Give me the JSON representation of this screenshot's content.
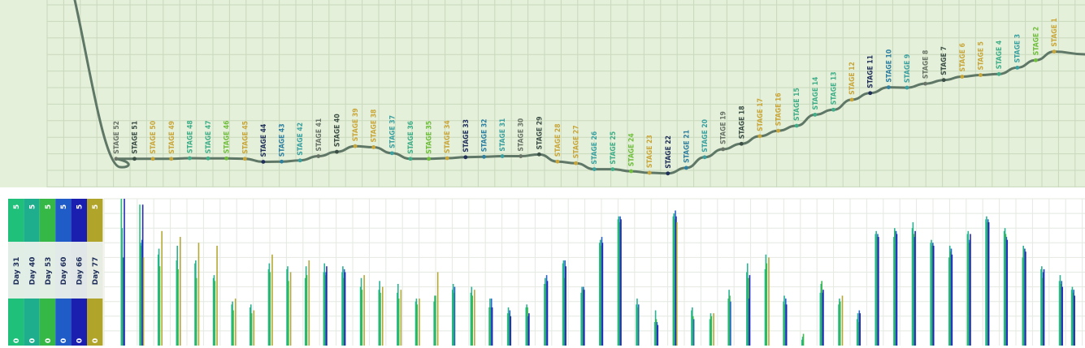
{
  "chart_data": [
    {
      "type": "line",
      "stages": [
        {
          "label": "STAGE 52",
          "x": 52,
          "y": 9,
          "color": "#6b7468"
        },
        {
          "label": "STAGE 51",
          "x": 51,
          "y": 9,
          "color": "#3c4f46"
        },
        {
          "label": "STAGE 50",
          "x": 50,
          "y": 9,
          "color": "#c9a63a"
        },
        {
          "label": "STAGE 49",
          "x": 49,
          "y": 9,
          "color": "#c9a63a"
        },
        {
          "label": "STAGE 48",
          "x": 48,
          "y": 9.3,
          "color": "#3fae88"
        },
        {
          "label": "STAGE 47",
          "x": 47,
          "y": 9.2,
          "color": "#3fae88"
        },
        {
          "label": "STAGE 46",
          "x": 46,
          "y": 9.2,
          "color": "#6fbe3c"
        },
        {
          "label": "STAGE 45",
          "x": 45,
          "y": 9,
          "color": "#c9a63a"
        },
        {
          "label": "STAGE 44",
          "x": 44,
          "y": 7.5,
          "color": "#1f2f5a"
        },
        {
          "label": "STAGE 43",
          "x": 43,
          "y": 7.6,
          "color": "#2e7fa0"
        },
        {
          "label": "STAGE 42",
          "x": 42,
          "y": 8.2,
          "color": "#3aa0a0"
        },
        {
          "label": "STAGE 41",
          "x": 41,
          "y": 10.3,
          "color": "#6b7468"
        },
        {
          "label": "STAGE 40",
          "x": 40,
          "y": 12.5,
          "color": "#3c4f46"
        },
        {
          "label": "STAGE 39",
          "x": 39,
          "y": 15.3,
          "color": "#c9a63a"
        },
        {
          "label": "STAGE 38",
          "x": 38,
          "y": 14.8,
          "color": "#c9a63a"
        },
        {
          "label": "STAGE 37",
          "x": 37,
          "y": 11.8,
          "color": "#3aa0a0"
        },
        {
          "label": "STAGE 36",
          "x": 36,
          "y": 9,
          "color": "#3fae88"
        },
        {
          "label": "STAGE 35",
          "x": 35,
          "y": 9,
          "color": "#6fbe3c"
        },
        {
          "label": "STAGE 34",
          "x": 34,
          "y": 9.3,
          "color": "#c9a63a"
        },
        {
          "label": "STAGE 33",
          "x": 33,
          "y": 9.8,
          "color": "#1f2f5a"
        },
        {
          "label": "STAGE 32",
          "x": 32,
          "y": 10,
          "color": "#2e7fa0"
        },
        {
          "label": "STAGE 31",
          "x": 31,
          "y": 10.3,
          "color": "#3aa0a0"
        },
        {
          "label": "STAGE 30",
          "x": 30,
          "y": 10.3,
          "color": "#6b7468"
        },
        {
          "label": "STAGE 29",
          "x": 29,
          "y": 11.2,
          "color": "#3c4f46"
        },
        {
          "label": "STAGE 28",
          "x": 28,
          "y": 7.6,
          "color": "#c9a63a"
        },
        {
          "label": "STAGE 27",
          "x": 27,
          "y": 6.8,
          "color": "#c9a63a"
        },
        {
          "label": "STAGE 26",
          "x": 26,
          "y": 3.8,
          "color": "#3aa0a0"
        },
        {
          "label": "STAGE 25",
          "x": 25,
          "y": 3.8,
          "color": "#3fae88"
        },
        {
          "label": "STAGE 24",
          "x": 24,
          "y": 2.8,
          "color": "#6fbe3c"
        },
        {
          "label": "STAGE 23",
          "x": 23,
          "y": 2,
          "color": "#c9a63a"
        },
        {
          "label": "STAGE 22",
          "x": 22,
          "y": 1.7,
          "color": "#1f2f5a"
        },
        {
          "label": "STAGE 21",
          "x": 21,
          "y": 4.5,
          "color": "#2e7fa0"
        },
        {
          "label": "STAGE 20",
          "x": 20,
          "y": 9.8,
          "color": "#3aa0a0"
        },
        {
          "label": "STAGE 19",
          "x": 19,
          "y": 13.8,
          "color": "#6b7468"
        },
        {
          "label": "STAGE 18",
          "x": 18,
          "y": 16.5,
          "color": "#3c4f46"
        },
        {
          "label": "STAGE 17",
          "x": 17,
          "y": 20.3,
          "color": "#c9a63a"
        },
        {
          "label": "STAGE 16",
          "x": 16,
          "y": 23,
          "color": "#c9a63a"
        },
        {
          "label": "STAGE 15",
          "x": 15,
          "y": 25.5,
          "color": "#3fae88"
        },
        {
          "label": "STAGE 14",
          "x": 14,
          "y": 31,
          "color": "#3fae88"
        },
        {
          "label": "STAGE 13",
          "x": 13,
          "y": 33.5,
          "color": "#3fae88"
        },
        {
          "label": "STAGE 12",
          "x": 12,
          "y": 38.5,
          "color": "#c9a63a"
        },
        {
          "label": "STAGE 11",
          "x": 11,
          "y": 41.8,
          "color": "#1f2f5a"
        },
        {
          "label": "STAGE 10",
          "x": 10,
          "y": 44.7,
          "color": "#2e7fa0"
        },
        {
          "label": "STAGE 9",
          "x": 9,
          "y": 44.5,
          "color": "#3aa0a0"
        },
        {
          "label": "STAGE 8",
          "x": 8,
          "y": 46.5,
          "color": "#6b7468"
        },
        {
          "label": "STAGE 7",
          "x": 7,
          "y": 48.3,
          "color": "#3c4f46"
        },
        {
          "label": "STAGE 6",
          "x": 6,
          "y": 50,
          "color": "#c9a63a"
        },
        {
          "label": "STAGE 5",
          "x": 5,
          "y": 50.8,
          "color": "#c9a63a"
        },
        {
          "label": "STAGE 4",
          "x": 4,
          "y": 51.3,
          "color": "#3fae88"
        },
        {
          "label": "STAGE 3",
          "x": 3,
          "y": 54.5,
          "color": "#3aa0a0"
        },
        {
          "label": "STAGE 2",
          "x": 2,
          "y": 58.2,
          "color": "#6fbe3c"
        },
        {
          "label": "STAGE 1",
          "x": 1,
          "y": 62.5,
          "color": "#c9a63a"
        }
      ],
      "background": "#e4f0d9",
      "line_color": "#5f7766",
      "grid": true
    },
    {
      "type": "bar",
      "legend": [
        {
          "name": "Day 31",
          "max": "5",
          "min": "0",
          "color": "#1ec07a"
        },
        {
          "name": "Day 40",
          "max": "5",
          "min": "0",
          "color": "#1fae8d"
        },
        {
          "name": "Day 53",
          "max": "5",
          "min": "0",
          "color": "#35b846"
        },
        {
          "name": "Day 60",
          "max": "5",
          "min": "0",
          "color": "#1f5cc8"
        },
        {
          "name": "Day 66",
          "max": "5",
          "min": "0",
          "color": "#1a1fb0"
        },
        {
          "name": "Day 77",
          "max": "5",
          "min": "0",
          "color": "#b1a42a"
        }
      ],
      "ylim": [
        0,
        5
      ],
      "grid": true,
      "bars": [
        {
          "x": 52,
          "values": [
            5,
            4,
            3,
            3,
            5,
            0
          ]
        },
        {
          "x": 51,
          "values": [
            4.8,
            3.5,
            3.4,
            3.6,
            4.8,
            3
          ]
        },
        {
          "x": 50,
          "values": [
            3.1,
            3.3,
            2.7,
            0,
            0,
            3.9
          ]
        },
        {
          "x": 49,
          "values": [
            2.9,
            3.4,
            2.6,
            0,
            0,
            3.7
          ]
        },
        {
          "x": 48,
          "values": [
            2.8,
            2.9,
            2.3,
            0,
            0,
            3.5
          ]
        },
        {
          "x": 47,
          "values": [
            2.3,
            2.4,
            2.2,
            0,
            0,
            3.4
          ]
        },
        {
          "x": 46,
          "values": [
            1.4,
            1.5,
            1.2,
            0,
            0,
            1.6
          ]
        },
        {
          "x": 45,
          "values": [
            1.3,
            1.4,
            1.1,
            0,
            0,
            1.2
          ]
        },
        {
          "x": 44,
          "values": [
            2.6,
            2.8,
            2.5,
            0,
            0,
            3.1
          ]
        },
        {
          "x": 43,
          "values": [
            2.6,
            2.7,
            2.2,
            0,
            0,
            2.5
          ]
        },
        {
          "x": 42,
          "values": [
            2.3,
            2.7,
            2.4,
            0,
            0,
            2.9
          ]
        },
        {
          "x": 41,
          "values": [
            2.5,
            2.8,
            2.4,
            2.5,
            2.7,
            0
          ]
        },
        {
          "x": 40,
          "values": [
            2.5,
            2.7,
            2.3,
            2.6,
            2.5,
            0
          ]
        },
        {
          "x": 39,
          "values": [
            2,
            2.3,
            1.9,
            0,
            0,
            2.4
          ]
        },
        {
          "x": 38,
          "values": [
            1.9,
            2.2,
            1.8,
            0,
            0,
            2
          ]
        },
        {
          "x": 37,
          "values": [
            1.8,
            2.1,
            1.6,
            0,
            0,
            1.9
          ]
        },
        {
          "x": 36,
          "values": [
            1.5,
            1.6,
            1.4,
            0,
            0,
            1.6
          ]
        },
        {
          "x": 35,
          "values": [
            1.5,
            1.7,
            1.7,
            0,
            0,
            2.5
          ]
        },
        {
          "x": 34,
          "values": [
            1.9,
            2.1,
            1.8,
            2,
            0,
            0
          ]
        },
        {
          "x": 33,
          "values": [
            1.8,
            2,
            1.7,
            0,
            0,
            1.9
          ]
        },
        {
          "x": 32,
          "values": [
            1.3,
            1.6,
            1.3,
            1.6,
            1.3,
            0
          ]
        },
        {
          "x": 31,
          "values": [
            1.1,
            1.3,
            1.1,
            1.2,
            1,
            0
          ]
        },
        {
          "x": 30,
          "values": [
            1.3,
            1.4,
            1.3,
            1,
            1.1,
            0
          ]
        },
        {
          "x": 29,
          "values": [
            2.1,
            2.3,
            2.1,
            2.4,
            2.2,
            0
          ]
        },
        {
          "x": 28,
          "values": [
            2.8,
            2.9,
            2.3,
            2.9,
            2.7,
            0
          ]
        },
        {
          "x": 27,
          "values": [
            1.8,
            2,
            1.9,
            2,
            1.9,
            0
          ]
        },
        {
          "x": 26,
          "values": [
            3.5,
            3.6,
            3.4,
            3.7,
            3.5,
            0
          ]
        },
        {
          "x": 25,
          "values": [
            4.3,
            4.4,
            4.2,
            4.4,
            4.3,
            0
          ]
        },
        {
          "x": 24,
          "values": [
            1.4,
            1.6,
            1.3,
            1.4,
            0,
            0
          ]
        },
        {
          "x": 23,
          "values": [
            0.8,
            1.2,
            0.9,
            0.8,
            0.7,
            0
          ]
        },
        {
          "x": 22,
          "values": [
            4.4,
            4.5,
            4.3,
            4.6,
            4.4,
            4.2
          ]
        },
        {
          "x": 21,
          "values": [
            1.2,
            1.3,
            1,
            0.9,
            0,
            0
          ]
        },
        {
          "x": 20,
          "values": [
            0.9,
            1.1,
            1,
            0,
            0,
            1.1
          ]
        },
        {
          "x": 19,
          "values": [
            1.6,
            1.9,
            1.7,
            1.5,
            0,
            0
          ]
        },
        {
          "x": 18,
          "values": [
            2.5,
            2.8,
            2.3,
            1.6,
            2.4,
            0
          ]
        },
        {
          "x": 17,
          "values": [
            2.6,
            3.1,
            2.8,
            0,
            0,
            3
          ]
        },
        {
          "x": 16,
          "values": [
            1.5,
            1.7,
            1.4,
            1.6,
            1.4,
            0
          ]
        },
        {
          "x": 15,
          "values": [
            0.2,
            0.3,
            0.4,
            0,
            0,
            0
          ]
        },
        {
          "x": 14,
          "values": [
            1.8,
            2.1,
            2.2,
            1.8,
            1.9,
            0
          ]
        },
        {
          "x": 13,
          "values": [
            1.4,
            1.6,
            1.5,
            0,
            0,
            1.7
          ]
        },
        {
          "x": 12,
          "values": [
            0.9,
            1.1,
            0.8,
            1.2,
            1.1,
            0
          ]
        },
        {
          "x": 11,
          "values": [
            3.8,
            3.9,
            3.7,
            3.8,
            3.7,
            0
          ]
        },
        {
          "x": 10,
          "values": [
            3.7,
            4,
            3.9,
            3.9,
            3.8,
            0
          ]
        },
        {
          "x": 9,
          "values": [
            4,
            4.2,
            3.8,
            3.7,
            3.9,
            0
          ]
        },
        {
          "x": 8,
          "values": [
            3.5,
            3.6,
            3.4,
            3.5,
            3.4,
            0
          ]
        },
        {
          "x": 7,
          "values": [
            3,
            3.4,
            3.2,
            3.3,
            3.1,
            0
          ]
        },
        {
          "x": 6,
          "values": [
            3.8,
            3.9,
            3.5,
            3.6,
            3.8,
            0
          ]
        },
        {
          "x": 5,
          "values": [
            4.3,
            4.4,
            4.2,
            4.3,
            4.2,
            0
          ]
        },
        {
          "x": 4,
          "values": [
            3.9,
            4,
            3.8,
            3.7,
            3.6,
            0
          ]
        },
        {
          "x": 3,
          "values": [
            3,
            3.4,
            3.3,
            3.3,
            3.2,
            0
          ]
        },
        {
          "x": 2,
          "values": [
            2.6,
            2.7,
            2.3,
            2.5,
            2.6,
            0
          ]
        },
        {
          "x": 1,
          "values": [
            2.2,
            2.4,
            2.1,
            2.2,
            2,
            0
          ]
        },
        {
          "x": 0.5,
          "values": [
            1.9,
            2,
            1.8,
            1.9,
            1.7,
            0
          ]
        }
      ]
    }
  ]
}
